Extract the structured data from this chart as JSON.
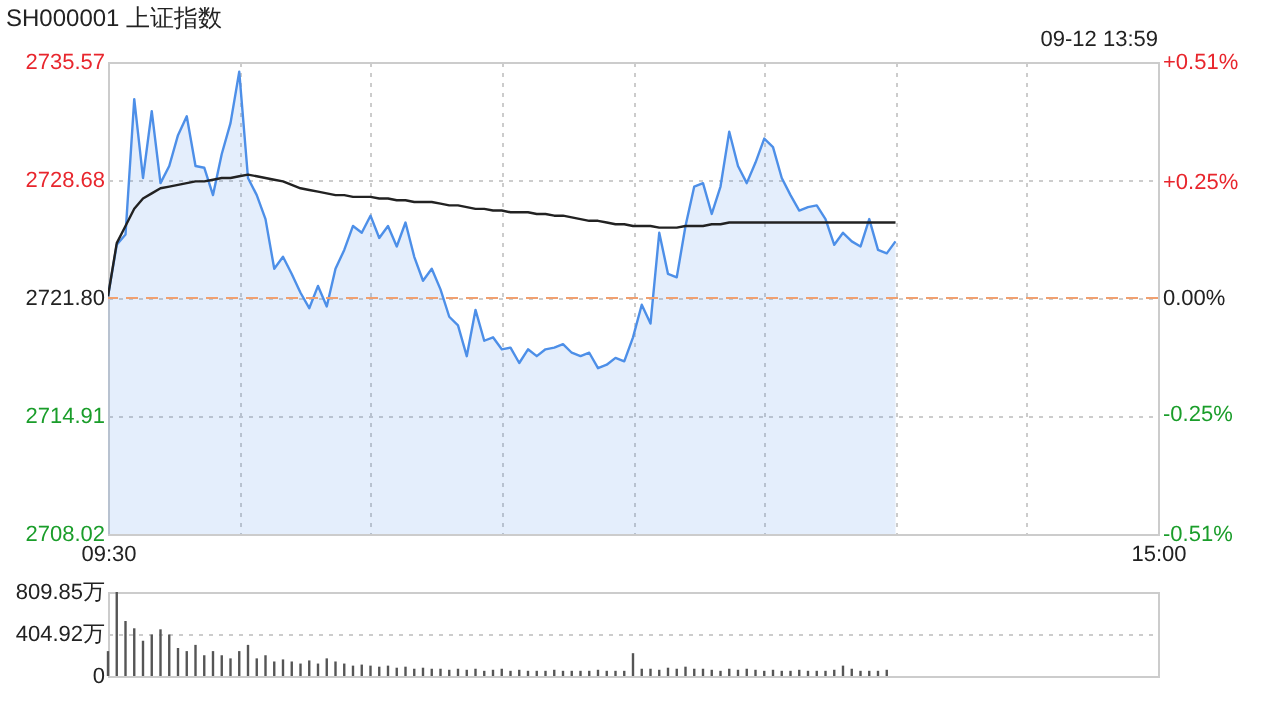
{
  "chart_data": [
    {
      "type": "line",
      "title": "SH000001 上证指数",
      "annotations": [
        "09-12 13:59"
      ],
      "categories": [
        "09:30",
        null,
        null,
        null,
        null,
        null,
        null,
        null,
        null,
        null,
        null,
        null,
        null,
        null,
        null,
        null,
        null,
        null,
        null,
        null,
        null,
        null,
        null,
        null,
        null,
        null,
        null,
        null,
        null,
        null,
        null,
        null,
        null,
        null,
        null,
        null,
        null,
        null,
        null,
        null,
        null,
        null,
        null,
        null,
        null,
        null,
        null,
        null,
        null,
        null,
        null,
        null,
        null,
        null,
        null,
        null,
        null,
        null,
        null,
        null,
        null,
        null,
        null,
        null,
        null,
        null,
        null,
        null,
        null,
        null,
        null,
        null,
        null,
        null,
        null,
        null,
        null,
        null,
        null,
        null,
        null,
        null,
        null,
        null,
        null,
        null,
        null,
        null,
        null,
        null,
        null,
        null,
        null,
        null,
        null,
        null,
        null,
        null,
        null,
        null,
        null,
        null,
        null,
        null,
        null,
        null,
        null,
        null,
        null,
        null,
        null,
        null,
        null,
        null,
        null,
        null,
        null,
        null,
        null,
        null,
        "15:00"
      ],
      "ylim": [
        2708.02,
        2735.57
      ],
      "yticks": [
        2708.02,
        2714.91,
        {
          "value": 2721.8,
          "label": "2721.80"
        },
        2728.68,
        2735.57
      ],
      "y2lim": [
        -0.51,
        0.51
      ],
      "y2ticks": [
        {
          "value": -0.51,
          "label": "-0.51%"
        },
        {
          "value": -0.25,
          "label": "-0.25%"
        },
        {
          "value": 0,
          "label": "0.00%"
        },
        {
          "value": 0.25,
          "label": "+0.25%"
        },
        {
          "value": 0.51,
          "label": "+0.51%"
        }
      ],
      "grid": true,
      "ref_lines": [
        {
          "axis": "y2",
          "value": 0,
          "color": "#f0a070",
          "line_style": "dashed"
        }
      ],
      "series": [
        {
          "type": "area",
          "color": "#4d8fe8",
          "values": [
            2721.9,
            2724.9,
            2725.5,
            2733.4,
            2728.8,
            2732.7,
            2728.5,
            2729.5,
            2731.3,
            2732.4,
            2729.5,
            2729.4,
            2727.8,
            2730.2,
            2732.0,
            2735.0,
            2728.8,
            2727.8,
            2726.4,
            2723.5,
            2724.2,
            2723.2,
            2722.1,
            2721.2,
            2722.5,
            2721.3,
            2723.5,
            2724.6,
            2726.0,
            2725.6,
            2726.6,
            2725.3,
            2726.0,
            2724.8,
            2726.2,
            2724.2,
            2722.8,
            2723.5,
            2722.3,
            2720.7,
            2720.2,
            2718.4,
            2721.1,
            2719.3,
            2719.5,
            2718.8,
            2718.9,
            2718.0,
            2718.8,
            2718.4,
            2718.8,
            2718.9,
            2719.1,
            2718.6,
            2718.4,
            2718.6,
            2717.7,
            2717.9,
            2718.3,
            2718.1,
            2719.5,
            2721.4,
            2720.3,
            2725.6,
            2723.2,
            2723.0,
            2726.0,
            2728.3,
            2728.5,
            2726.7,
            2728.3,
            2731.5,
            2729.5,
            2728.5,
            2729.7,
            2731.1,
            2730.6,
            2728.8,
            2727.8,
            2726.9,
            2727.1,
            2727.2,
            2726.4,
            2724.9,
            2725.6,
            2725.1,
            2724.8,
            2726.4,
            2724.6,
            2724.4,
            2725.1,
            null,
            null,
            null,
            null,
            null,
            null,
            null,
            null,
            null,
            null,
            null,
            null,
            null,
            null,
            null,
            null,
            null,
            null,
            null,
            null,
            null,
            null,
            null,
            null,
            null,
            null,
            null,
            null,
            null,
            null
          ]
        },
        {
          "type": "line",
          "color": "#222222",
          "values": [
            2721.9,
            2725.0,
            2726.0,
            2727.0,
            2727.6,
            2727.9,
            2728.2,
            2728.3,
            2728.4,
            2728.5,
            2728.6,
            2728.6,
            2728.7,
            2728.8,
            2728.8,
            2728.9,
            2729.0,
            2728.9,
            2728.8,
            2728.7,
            2728.6,
            2728.4,
            2728.2,
            2728.1,
            2728.0,
            2727.9,
            2727.8,
            2727.8,
            2727.7,
            2727.7,
            2727.7,
            2727.6,
            2727.6,
            2727.5,
            2727.5,
            2727.4,
            2727.4,
            2727.4,
            2727.3,
            2727.2,
            2727.2,
            2727.1,
            2727.0,
            2727.0,
            2726.9,
            2726.9,
            2726.8,
            2726.8,
            2726.8,
            2726.7,
            2726.7,
            2726.6,
            2726.6,
            2726.5,
            2726.4,
            2726.3,
            2726.3,
            2726.2,
            2726.1,
            2726.1,
            2726.0,
            2726.0,
            2726.0,
            2725.9,
            2725.9,
            2725.9,
            2726.0,
            2726.0,
            2726.0,
            2726.1,
            2726.1,
            2726.2,
            2726.2,
            2726.2,
            2726.2,
            2726.2,
            2726.2,
            2726.2,
            2726.2,
            2726.2,
            2726.2,
            2726.2,
            2726.2,
            2726.2,
            2726.2,
            2726.2,
            2726.2,
            2726.2,
            2726.2,
            2726.2,
            2726.2,
            null,
            null,
            null,
            null,
            null,
            null,
            null,
            null,
            null,
            null,
            null,
            null,
            null,
            null,
            null,
            null,
            null,
            null,
            null,
            null,
            null,
            null,
            null,
            null,
            null,
            null,
            null,
            null,
            null,
            null
          ]
        }
      ]
    },
    {
      "type": "bar",
      "color": "#555555",
      "grid": "y",
      "categories": [
        null,
        null,
        null,
        null,
        null,
        null,
        null,
        null,
        null,
        null,
        null,
        null,
        null,
        null,
        null,
        null,
        null,
        null,
        null,
        null,
        null,
        null,
        null,
        null,
        null,
        null,
        null,
        null,
        null,
        null,
        null,
        null,
        null,
        null,
        null,
        null,
        null,
        null,
        null,
        null,
        null,
        null,
        null,
        null,
        null,
        null,
        null,
        null,
        null,
        null,
        null,
        null,
        null,
        null,
        null,
        null,
        null,
        null,
        null,
        null,
        null,
        null,
        null,
        null,
        null,
        null,
        null,
        null,
        null,
        null,
        null,
        null,
        null,
        null,
        null,
        null,
        null,
        null,
        null,
        null,
        null,
        null,
        null,
        null,
        null,
        null,
        null,
        null,
        null,
        null,
        null,
        null,
        null,
        null,
        null,
        null,
        null,
        null,
        null,
        null,
        null,
        null,
        null,
        null,
        null,
        null,
        null,
        null,
        null,
        null,
        null,
        null,
        null,
        null,
        null,
        null,
        null,
        null,
        null,
        null,
        null
      ],
      "ylim": [
        0,
        809.85
      ],
      "yticks": [
        {
          "value": 0,
          "label": "0"
        },
        {
          "value": 404.92,
          "label": "404.92万"
        },
        {
          "value": 809.85,
          "label": "809.85万"
        }
      ],
      "values": [
        240,
        809.85,
        530,
        460,
        340,
        400,
        450,
        400,
        270,
        240,
        300,
        200,
        240,
        200,
        170,
        240,
        300,
        170,
        200,
        140,
        160,
        140,
        120,
        150,
        120,
        170,
        140,
        120,
        100,
        110,
        100,
        90,
        100,
        80,
        90,
        70,
        80,
        70,
        70,
        60,
        70,
        60,
        70,
        50,
        60,
        70,
        50,
        60,
        50,
        50,
        50,
        60,
        50,
        50,
        50,
        50,
        60,
        50,
        50,
        50,
        220,
        70,
        70,
        60,
        80,
        70,
        90,
        70,
        70,
        60,
        50,
        70,
        60,
        70,
        60,
        50,
        60,
        50,
        50,
        60,
        50,
        50,
        50,
        60,
        100,
        70,
        50,
        50,
        50,
        60,
        null,
        null,
        null,
        null,
        null,
        null,
        null,
        null,
        null,
        null,
        null,
        null,
        null,
        null,
        null,
        null,
        null,
        null,
        null,
        null,
        null,
        null,
        null,
        null,
        null,
        null,
        null,
        null,
        null,
        null,
        null
      ]
    }
  ]
}
